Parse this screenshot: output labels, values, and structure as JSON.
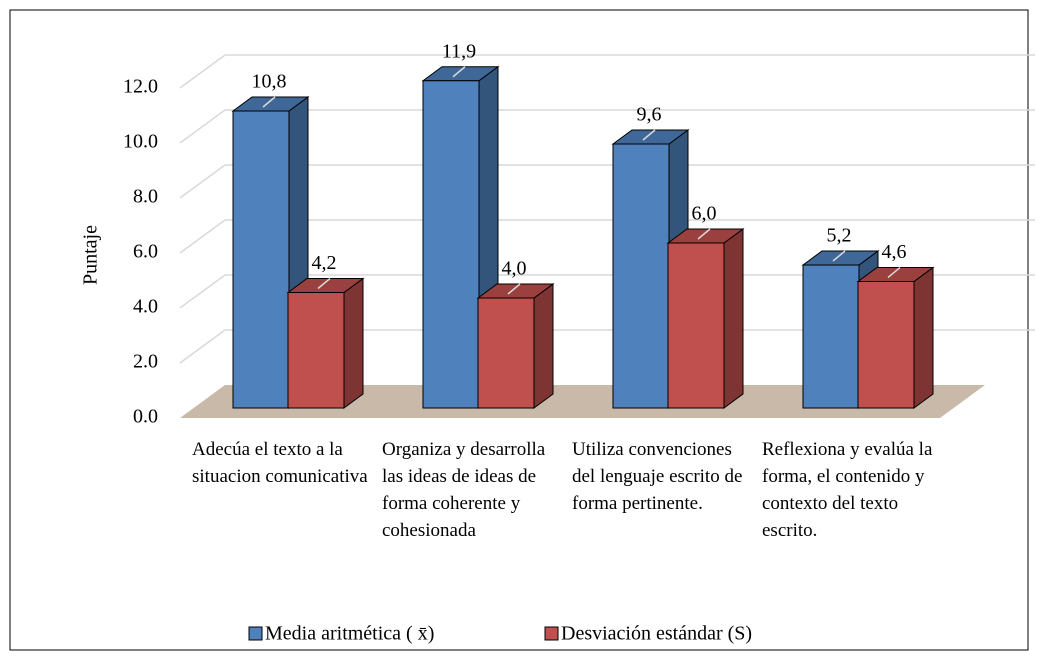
{
  "chart_data": {
    "type": "bar3d",
    "y_label": "Puntaje",
    "categories": [
      "Adecúa el texto a la situacion comunicativa",
      "Organiza y desarrolla las ideas de ideas de forma coherente y cohesionada",
      "Utiliza convenciones del lenguaje escrito de forma pertinente.",
      "Reflexiona y evalúa la forma, el contenido y contexto del texto escrito."
    ],
    "series": [
      {
        "name": "Media aritmética ( x̄)",
        "color": "#4f81bd",
        "values": [
          10.8,
          11.9,
          9.6,
          5.2
        ],
        "value_labels": [
          "10,8",
          "11,9",
          "9,6",
          "5,2"
        ]
      },
      {
        "name": "Desviación estándar (S)",
        "color": "#c0504d",
        "values": [
          4.2,
          4.0,
          6.0,
          4.6
        ],
        "value_labels": [
          "4,2",
          "4,0",
          "6,0",
          "4,6"
        ]
      }
    ],
    "ylim": [
      0,
      12
    ],
    "yticks": [
      {
        "value": 0,
        "label": "0.0"
      },
      {
        "value": 2,
        "label": "2.0"
      },
      {
        "value": 4,
        "label": "4.0"
      },
      {
        "value": 6,
        "label": "6.0"
      },
      {
        "value": 8,
        "label": "8.0"
      },
      {
        "value": 10,
        "label": "10.0"
      },
      {
        "value": 12,
        "label": "12.0"
      }
    ],
    "grid": true,
    "legend": "bottom"
  }
}
